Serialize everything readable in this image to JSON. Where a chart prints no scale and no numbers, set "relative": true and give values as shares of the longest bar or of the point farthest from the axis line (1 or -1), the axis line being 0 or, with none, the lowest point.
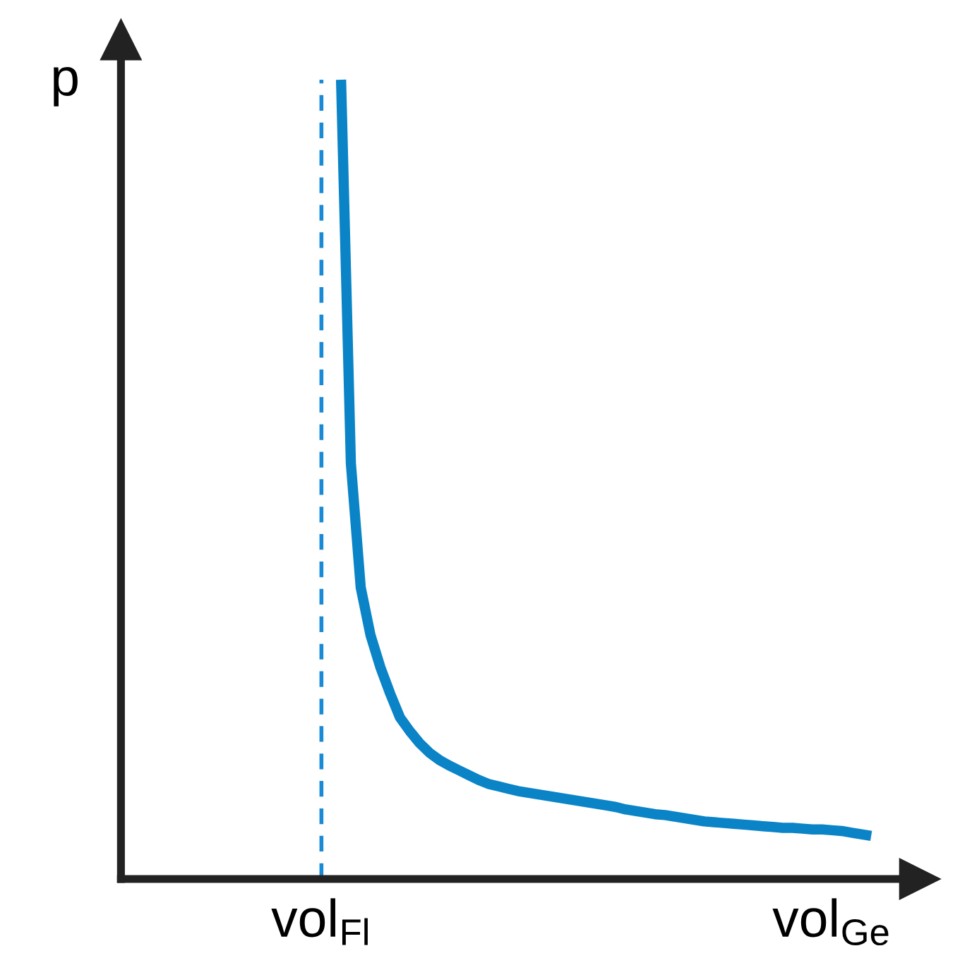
{
  "chart_data": {
    "type": "line",
    "relative": true,
    "ylabel": "p",
    "categories": [
      null,
      null,
      null,
      null,
      null,
      null,
      null,
      null,
      null,
      null,
      null,
      null,
      null,
      null,
      null,
      null,
      null,
      null,
      null,
      null,
      "vol$_{Fl}$",
      null,
      null,
      null,
      null,
      null,
      null,
      null,
      null,
      null,
      null,
      null,
      null,
      null,
      null,
      null,
      null,
      null,
      null,
      null,
      null,
      null,
      null,
      null,
      null,
      null,
      null,
      null,
      null,
      null,
      null,
      null,
      null,
      null,
      null,
      null,
      null,
      null,
      null,
      null,
      null,
      null,
      null,
      null,
      null,
      null,
      null,
      null,
      null,
      null,
      null,
      null,
      "vol$_{Ge}$",
      null,
      null,
      null,
      null,
      null,
      null,
      null,
      null
    ],
    "marker": "none",
    "line_style": "solid",
    "ref_lines": [
      {
        "axis": "x",
        "value": "vol$_{Fl}$",
        "color": "#1a8ad4",
        "line_style": "dashed"
      }
    ],
    "series": [
      {
        "color": "#0a84c6",
        "values": [
          null,
          null,
          null,
          null,
          null,
          null,
          null,
          null,
          null,
          null,
          null,
          null,
          null,
          null,
          null,
          null,
          null,
          null,
          null,
          null,
          null,
          null,
          1,
          0.52,
          0.365,
          0.305,
          0.265,
          0.232,
          0.202,
          0.185,
          0.17,
          0.158,
          0.149,
          0.142,
          0.136,
          0.13,
          0.124,
          0.119,
          0.116,
          0.113,
          0.11,
          0.108,
          0.106,
          0.104,
          0.102,
          0.1,
          0.098,
          0.096,
          0.094,
          0.092,
          0.09,
          0.087,
          0.085,
          0.083,
          0.081,
          0.08,
          0.078,
          0.076,
          0.074,
          0.072,
          0.071,
          0.07,
          0.069,
          0.068,
          0.067,
          0.066,
          0.065,
          0.064,
          0.064,
          0.063,
          0.062,
          0.062,
          0.061,
          0.06,
          0.058,
          0.056,
          0.054,
          null,
          null,
          null,
          null
        ]
      }
    ]
  }
}
